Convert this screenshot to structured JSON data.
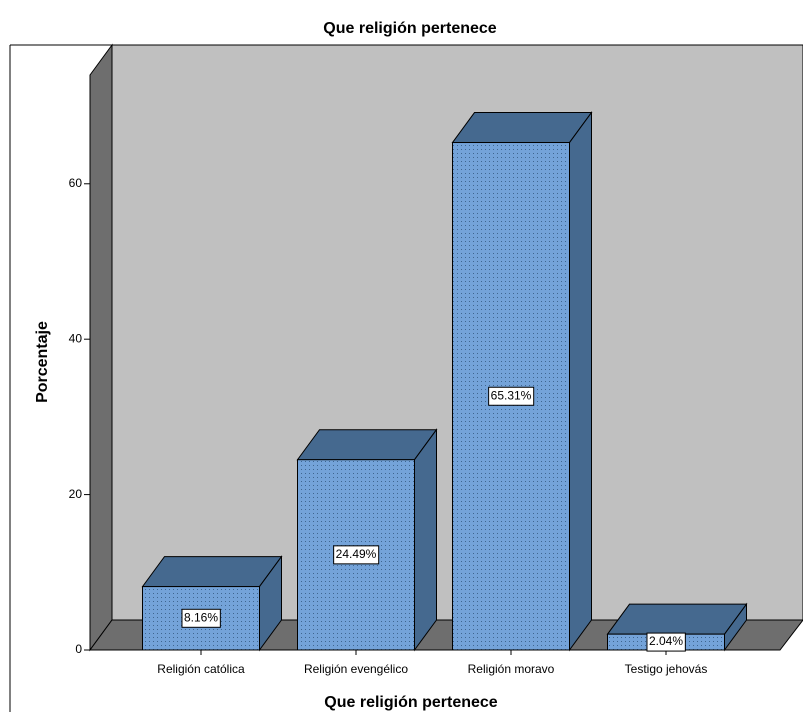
{
  "chart_data": {
    "type": "bar3d",
    "title": "Que religión pertenece",
    "xlabel": "Que religión pertenece",
    "ylabel": "Porcentaje",
    "categories": [
      "Religión católica",
      "Religión evengélico",
      "Religión moravo",
      "Testigo jehovás"
    ],
    "values": [
      8.16,
      24.49,
      65.31,
      2.04
    ],
    "value_labels": [
      "8.16%",
      "24.49%",
      "65.31%",
      "2.04%"
    ],
    "color": "#74a3d9",
    "ylim": [
      0,
      74
    ],
    "yticks": [
      0,
      20,
      40,
      60
    ]
  }
}
